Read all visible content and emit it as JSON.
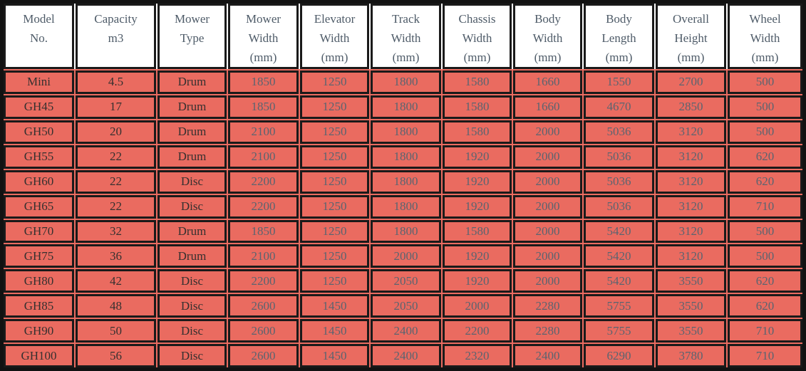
{
  "table": {
    "headers": [
      {
        "lines": [
          "Model",
          "No."
        ]
      },
      {
        "lines": [
          "Capacity",
          "m3"
        ]
      },
      {
        "lines": [
          "Mower",
          "Type"
        ]
      },
      {
        "lines": [
          "Mower",
          "Width",
          "(mm)"
        ]
      },
      {
        "lines": [
          "Elevator",
          "Width",
          "(mm)"
        ]
      },
      {
        "lines": [
          "Track",
          "Width",
          "(mm)"
        ]
      },
      {
        "lines": [
          "Chassis",
          "Width",
          "(mm)"
        ]
      },
      {
        "lines": [
          "Body",
          "Width",
          "(mm)"
        ]
      },
      {
        "lines": [
          "Body",
          "Length",
          "(mm)"
        ]
      },
      {
        "lines": [
          "Overall",
          "Height",
          "(mm)"
        ]
      },
      {
        "lines": [
          "Wheel",
          "Width",
          "(mm)"
        ]
      }
    ],
    "label_column_count": 3,
    "rows": [
      [
        "Mini",
        "4.5",
        "Drum",
        "1850",
        "1250",
        "1800",
        "1580",
        "1660",
        "1550",
        "2700",
        "500"
      ],
      [
        "GH45",
        "17",
        "Drum",
        "1850",
        "1250",
        "1800",
        "1580",
        "1660",
        "4670",
        "2850",
        "500"
      ],
      [
        "GH50",
        "20",
        "Drum",
        "2100",
        "1250",
        "1800",
        "1580",
        "2000",
        "5036",
        "3120",
        "500"
      ],
      [
        "GH55",
        "22",
        "Drum",
        "2100",
        "1250",
        "1800",
        "1920",
        "2000",
        "5036",
        "3120",
        "620"
      ],
      [
        "GH60",
        "22",
        "Disc",
        "2200",
        "1250",
        "1800",
        "1920",
        "2000",
        "5036",
        "3120",
        "620"
      ],
      [
        "GH65",
        "22",
        "Disc",
        "2200",
        "1250",
        "1800",
        "1920",
        "2000",
        "5036",
        "3120",
        "710"
      ],
      [
        "GH70",
        "32",
        "Drum",
        "1850",
        "1250",
        "1800",
        "1580",
        "2000",
        "5420",
        "3120",
        "500"
      ],
      [
        "GH75",
        "36",
        "Drum",
        "2100",
        "1250",
        "2000",
        "1920",
        "2000",
        "5420",
        "3120",
        "500"
      ],
      [
        "GH80",
        "42",
        "Disc",
        "2200",
        "1250",
        "2050",
        "1920",
        "2000",
        "5420",
        "3550",
        "620"
      ],
      [
        "GH85",
        "48",
        "Disc",
        "2600",
        "1450",
        "2050",
        "2000",
        "2280",
        "5755",
        "3550",
        "620"
      ],
      [
        "GH90",
        "50",
        "Disc",
        "2600",
        "1450",
        "2400",
        "2200",
        "2280",
        "5755",
        "3550",
        "710"
      ],
      [
        "GH100",
        "56",
        "Disc",
        "2600",
        "1450",
        "2400",
        "2320",
        "2400",
        "6290",
        "3780",
        "710"
      ]
    ]
  },
  "colors": {
    "cell_bg": "#ea6b60",
    "border": "#1a1a1a",
    "frame": "#121212",
    "header_bg": "#ffffff",
    "header_text": "#4e5b68",
    "label_text": "#35302f",
    "value_text": "#5a6470"
  }
}
